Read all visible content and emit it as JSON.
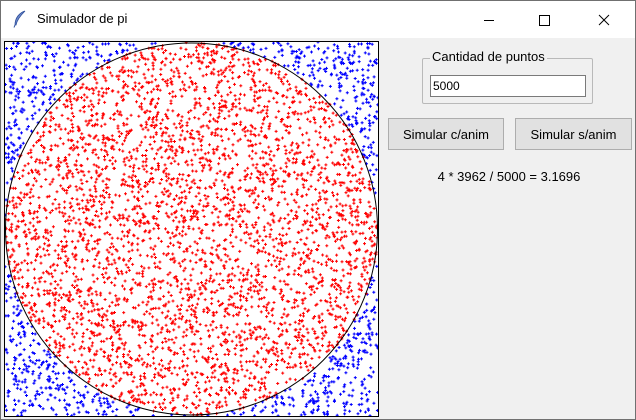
{
  "window": {
    "title": "Simulador de pi",
    "icon": "feather-icon",
    "controls": [
      "minimize-icon",
      "maximize-icon",
      "close-icon"
    ]
  },
  "canvas": {
    "total_points": 5000,
    "points_inside": 3962,
    "inside_color": "#ff0000",
    "outside_color": "#0000ff",
    "circle_color": "#000000",
    "background": "#ffffff"
  },
  "controls": {
    "group_label": "Cantidad de puntos",
    "points_value": "5000",
    "simulate_anim_label": "Simular c/anim",
    "simulate_noanim_label": "Simular s/anim",
    "result_text": "4 * 3962 / 5000 = 3.1696"
  }
}
